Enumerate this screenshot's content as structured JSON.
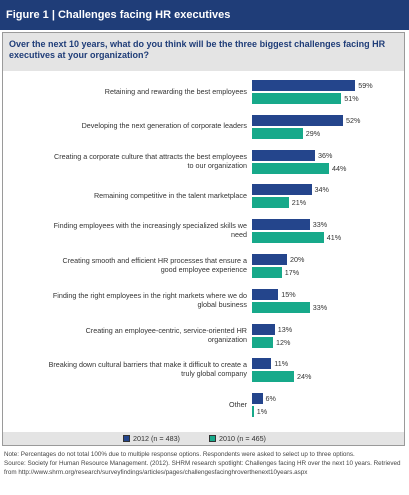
{
  "header": {
    "title": "Figure 1 | Challenges facing HR executives"
  },
  "chart_data": {
    "type": "bar",
    "orientation": "horizontal",
    "title": "Over the next 10 years, what do you think will be the three biggest challenges facing HR executives at your organization?",
    "categories": [
      "Retaining and rewarding the best employees",
      "Developing the next generation of corporate leaders",
      "Creating a corporate culture that attracts the best employees to our organization",
      "Remaining competitive in the talent marketplace",
      "Finding employees with the increasingly specialized skills we need",
      "Creating smooth and efficient HR processes that ensure a good employee experience",
      "Finding the right employees in the right markets where we do global business",
      "Creating an employee-centric, service-oriented HR organization",
      "Breaking down cultural barriers that make it difficult to create a truly global company",
      "Other"
    ],
    "series": [
      {
        "name": "2012 (n = 483)",
        "color": "#24458c",
        "values": [
          59,
          52,
          36,
          34,
          33,
          20,
          15,
          13,
          11,
          6
        ],
        "value_labels": [
          "59%",
          "52%",
          "36%",
          "34%",
          "33%",
          "20%",
          "15%",
          "13%",
          "11%",
          "6%"
        ]
      },
      {
        "name": "2010 (n = 465)",
        "color": "#17a98a",
        "values": [
          51,
          29,
          44,
          21,
          41,
          17,
          33,
          12,
          24,
          1
        ],
        "value_labels": [
          "51%",
          "29%",
          "44%",
          "21%",
          "41%",
          "17%",
          "33%",
          "12%",
          "24%",
          "1%"
        ]
      }
    ],
    "note": "Note: Percentages do not total 100% due to multiple response options. Respondents were asked to select up to three options.",
    "source": "Source: Society for Human Resource Management. (2012). SHRM research spotlight: Challenges facing HR over the next 10 years. Retrieved from http://www.shrm.org/research/surveyfindings/articles/pages/challengesfacinghroverthenext10years.aspx"
  }
}
